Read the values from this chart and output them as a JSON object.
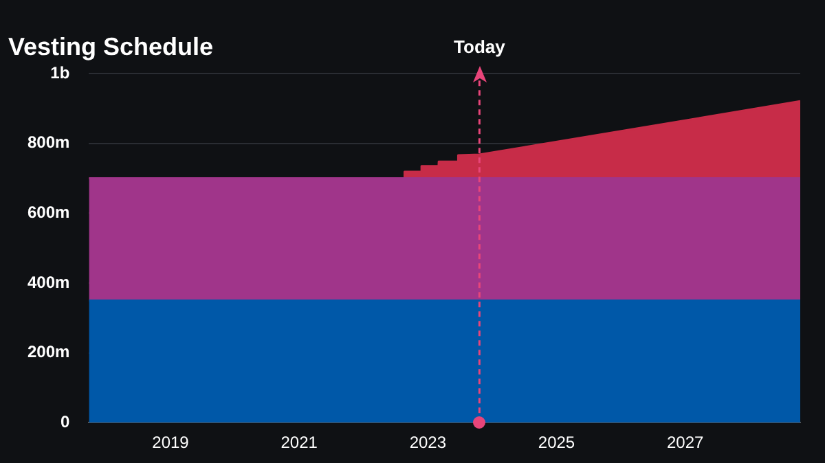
{
  "chart_data": {
    "type": "area",
    "title": "Vesting Schedule",
    "stacked": true,
    "x": [
      "2017-09-25",
      "2022-08-20",
      "2022-08-21",
      "2022-11-25",
      "2022-11-26",
      "2023-03-01",
      "2023-03-02",
      "2023-06-20",
      "2023-06-21",
      "2023-10-20",
      "2028-10-15"
    ],
    "series": [
      {
        "color": "#0058a8",
        "values": [
          350000000,
          350000000,
          350000000,
          350000000,
          350000000,
          350000000,
          350000000,
          350000000,
          350000000,
          350000000,
          350000000
        ]
      },
      {
        "color": "#a0358a",
        "values": [
          350000000,
          350000000,
          350000000,
          350000000,
          350000000,
          350000000,
          350000000,
          350000000,
          350000000,
          350000000,
          350000000
        ]
      },
      {
        "color": "#c72c48",
        "values": [
          0,
          0,
          19000000,
          19000000,
          35000000,
          35000000,
          48000000,
          48000000,
          66000000,
          68000000,
          221000000
        ]
      }
    ],
    "xlim": [
      "2017-09-25",
      "2028-10-15"
    ],
    "xticks": [
      "2019",
      "2021",
      "2023",
      "2025",
      "2027"
    ],
    "ylim": [
      0,
      1000000000
    ],
    "yticks": [
      0,
      {
        "value": 200000000,
        "label": "200m"
      },
      {
        "value": 400000000,
        "label": "400m"
      },
      {
        "value": 600000000,
        "label": "600m"
      },
      {
        "value": 800000000,
        "label": "800m"
      },
      {
        "value": 1000000000,
        "label": "1b"
      }
    ],
    "ref_lines": [
      {
        "axis": "x",
        "value": "2023-10-20",
        "label": "Today",
        "color": "#e8457a",
        "line_style": "dashed"
      }
    ],
    "grid": "y",
    "legend": false
  }
}
